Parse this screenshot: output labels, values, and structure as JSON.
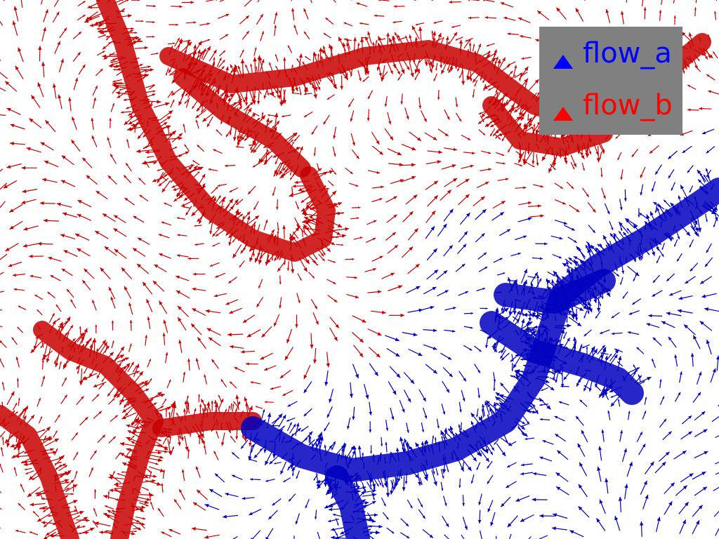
{
  "legend": {
    "entries": [
      {
        "label": "flow_a",
        "color": "#0000ff",
        "glyph": "triangle-up"
      },
      {
        "label": "flow_b",
        "color": "#ff0000",
        "glyph": "triangle-up"
      }
    ],
    "background": "#808080"
  },
  "scene": {
    "background": "#ffffff",
    "arrow_colors": {
      "flow_a": "#0000c0",
      "flow_b": "#c80000",
      "outline": "#300000"
    }
  }
}
